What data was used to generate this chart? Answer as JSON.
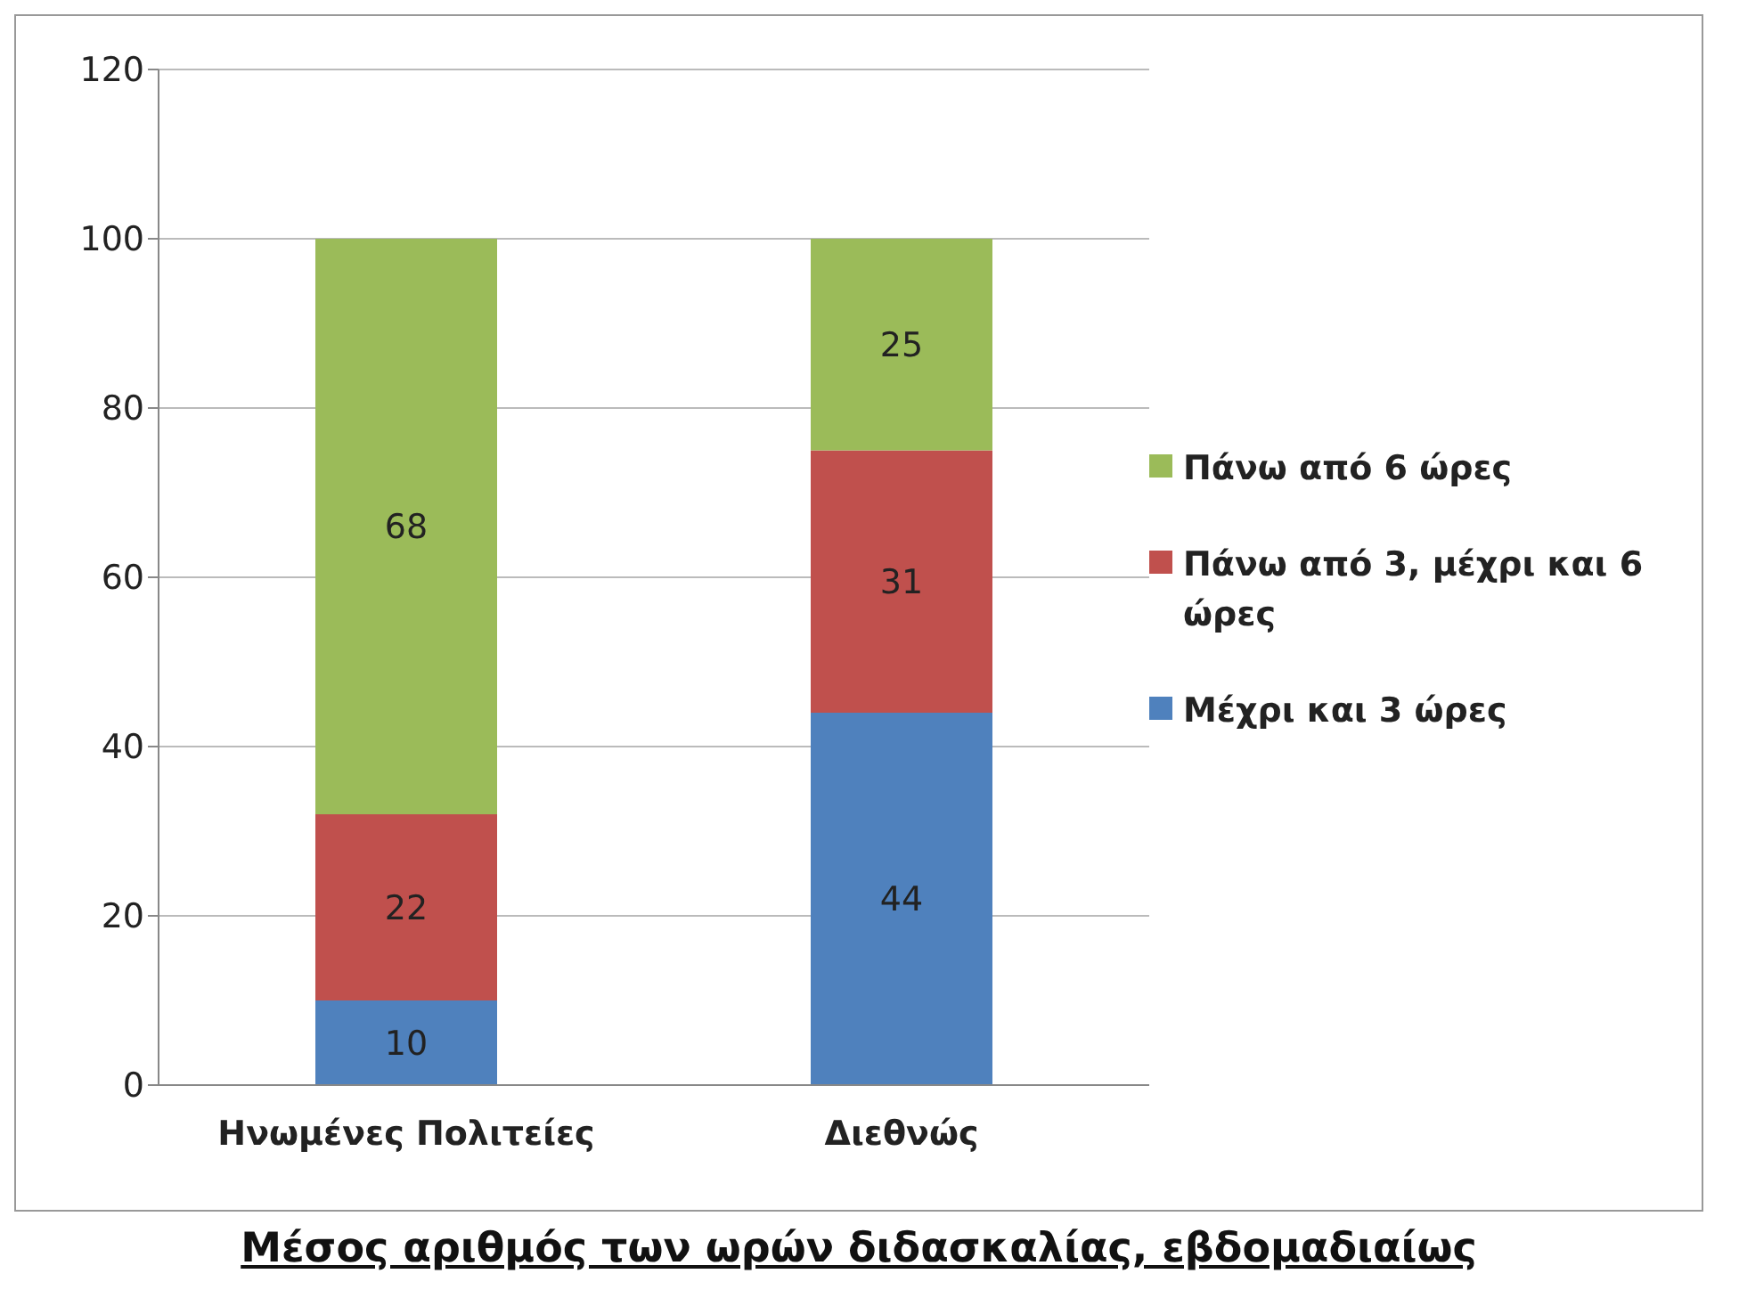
{
  "chart_data": {
    "type": "bar",
    "title": "Μέσος αριθμός των ωρών διδασκαλίας, εβδομαδιαίως",
    "categories": [
      "Ηνωμένες Πολιτείες",
      "Διεθνώς"
    ],
    "stacked": true,
    "series": [
      {
        "name": "Μέχρι και 3 ώρες",
        "color": "#4f81bd",
        "values": [
          10,
          44
        ]
      },
      {
        "name": "Πάνω από 3, μέχρι και 6 ώρες",
        "color": "#c0504d",
        "values": [
          22,
          31
        ]
      },
      {
        "name": "Πάνω από 6 ώρες",
        "color": "#9bbb59",
        "values": [
          68,
          25
        ]
      }
    ],
    "ylim": [
      0,
      120
    ],
    "yticks": [
      0,
      20,
      40,
      60,
      80,
      100,
      120
    ],
    "grid": "y",
    "legend": "right",
    "data_labels": true
  }
}
